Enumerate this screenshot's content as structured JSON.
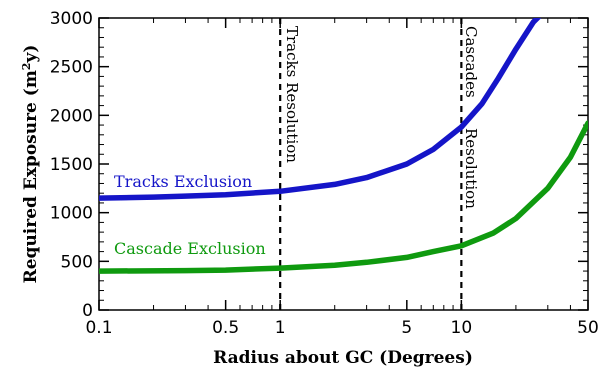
{
  "chart_data": {
    "type": "line",
    "x_scale": "log",
    "xlim": [
      0.1,
      50
    ],
    "ylim": [
      0,
      3000
    ],
    "xlabel": "Radius about GC (Degrees)",
    "ylabel": "Required Exposure (m²y)",
    "ylabel_parts": {
      "main": "Required Exposure (m",
      "sup": "2",
      "tail": "y)"
    },
    "x_ticks": [
      {
        "value": 0.1,
        "label": "0.1"
      },
      {
        "value": 0.5,
        "label": "0.5"
      },
      {
        "value": 1,
        "label": "1"
      },
      {
        "value": 5,
        "label": "5"
      },
      {
        "value": 10,
        "label": "10"
      },
      {
        "value": 50,
        "label": "50"
      }
    ],
    "y_ticks": [
      {
        "value": 0,
        "label": "0"
      },
      {
        "value": 500,
        "label": "500"
      },
      {
        "value": 1000,
        "label": "1000"
      },
      {
        "value": 1500,
        "label": "1500"
      },
      {
        "value": 2000,
        "label": "2000"
      },
      {
        "value": 2500,
        "label": "2500"
      },
      {
        "value": 3000,
        "label": "3000"
      }
    ],
    "series": [
      {
        "name": "Tracks Exclusion",
        "color": "#1515c8",
        "x": [
          0.1,
          0.2,
          0.3,
          0.5,
          1,
          2,
          3,
          5,
          7,
          10,
          13,
          16,
          20,
          25,
          28
        ],
        "y": [
          1150,
          1160,
          1170,
          1185,
          1220,
          1290,
          1360,
          1500,
          1650,
          1880,
          2120,
          2380,
          2680,
          2960,
          3050
        ]
      },
      {
        "name": "Cascade Exclusion",
        "color": "#0f9a0f",
        "x": [
          0.1,
          0.3,
          0.5,
          1,
          2,
          3,
          5,
          7,
          10,
          15,
          20,
          30,
          40,
          50
        ],
        "y": [
          400,
          405,
          410,
          430,
          460,
          490,
          540,
          600,
          660,
          790,
          940,
          1250,
          1570,
          1920
        ]
      }
    ],
    "vlines": [
      {
        "x": 1,
        "label": "Tracks Resolution"
      },
      {
        "x": 10,
        "label_parts": [
          "Cascades",
          "Resolution"
        ]
      }
    ],
    "grid": false,
    "legend": "none"
  }
}
